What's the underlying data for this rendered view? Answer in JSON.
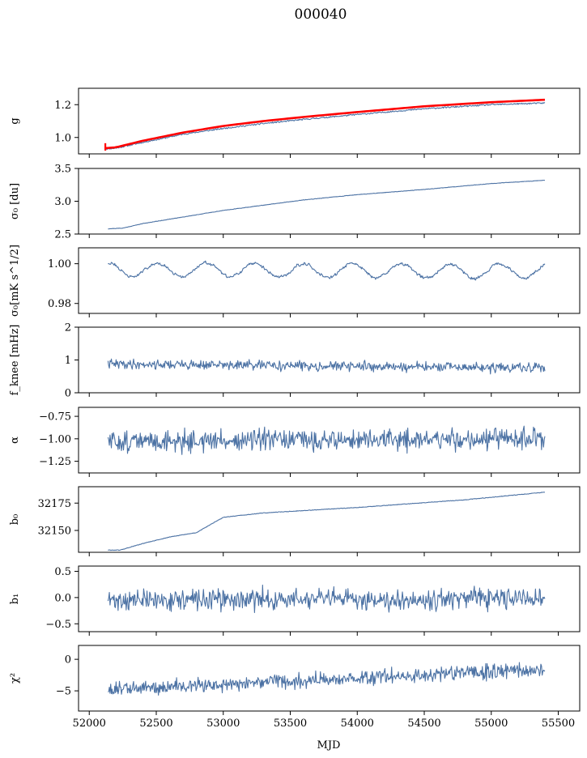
{
  "figure": {
    "title": "000040",
    "xlabel": "MJD",
    "x_ticks": [
      52000,
      52500,
      53000,
      53500,
      54000,
      54500,
      55000,
      55500
    ],
    "x_tick_labels": [
      "52000",
      "52500",
      "53000",
      "53500",
      "54000",
      "54500",
      "55000",
      "55500"
    ],
    "xlim": [
      51920,
      55660
    ]
  },
  "colors": {
    "series": "#4c72a4",
    "fit": "#ff0000",
    "axes": "#000000",
    "background": "#ffffff"
  },
  "chart_data": [
    {
      "type": "line",
      "ylabel": "g",
      "ylim": [
        0.9,
        1.3
      ],
      "yticks": [
        1.0,
        1.2
      ],
      "ytick_labels": [
        "1.0",
        "1.2"
      ],
      "x_range": [
        52120,
        55400
      ],
      "series": [
        {
          "kind": "noisy",
          "color": "#4c72a4",
          "points": [
            [
              52120,
              0.93
            ],
            [
              52200,
              0.935
            ],
            [
              52400,
              0.97
            ],
            [
              52700,
              1.02
            ],
            [
              53000,
              1.055
            ],
            [
              53300,
              1.085
            ],
            [
              53600,
              1.11
            ],
            [
              54000,
              1.14
            ],
            [
              54500,
              1.175
            ],
            [
              55000,
              1.2
            ],
            [
              55400,
              1.21
            ]
          ],
          "noise": 0.004,
          "seed": 11
        },
        {
          "kind": "fit",
          "color": "#ff0000",
          "points": [
            [
              52120,
              0.935
            ],
            [
              52200,
              0.94
            ],
            [
              52400,
              0.98
            ],
            [
              52700,
              1.03
            ],
            [
              53000,
              1.07
            ],
            [
              53300,
              1.1
            ],
            [
              53600,
              1.125
            ],
            [
              54000,
              1.155
            ],
            [
              54500,
              1.19
            ],
            [
              55000,
              1.215
            ],
            [
              55400,
              1.23
            ],
            [
              55480,
              1.232
            ]
          ],
          "noise": 0.0,
          "seed": 3
        }
      ]
    },
    {
      "type": "line",
      "ylabel": "σ₀ [du]",
      "ylim": [
        2.5,
        3.5
      ],
      "yticks": [
        2.5,
        3.0,
        3.5
      ],
      "ytick_labels": [
        "2.5",
        "3.0",
        "3.5"
      ],
      "x_range": [
        52140,
        55400
      ],
      "series": [
        {
          "kind": "noisy",
          "color": "#4c72a4",
          "points": [
            [
              52140,
              2.58
            ],
            [
              52250,
              2.59
            ],
            [
              52400,
              2.66
            ],
            [
              52700,
              2.76
            ],
            [
              53000,
              2.86
            ],
            [
              53300,
              2.94
            ],
            [
              53600,
              3.02
            ],
            [
              54000,
              3.1
            ],
            [
              54500,
              3.18
            ],
            [
              55000,
              3.27
            ],
            [
              55400,
              3.32
            ]
          ],
          "noise": 0.003,
          "seed": 21
        }
      ]
    },
    {
      "type": "line",
      "ylabel": "σ₀[mK s^1/2]",
      "ylim": [
        0.975,
        1.008
      ],
      "yticks": [
        0.98,
        1.0
      ],
      "ytick_labels": [
        "0.98",
        "1.00"
      ],
      "x_range": [
        52140,
        55400
      ],
      "series": [
        {
          "kind": "wave",
          "color": "#4c72a4",
          "base": 0.997,
          "trend": -0.0008,
          "amplitude": 0.0035,
          "period": 365,
          "phase": 0.0,
          "noise": 0.0013,
          "seed": 31
        }
      ]
    },
    {
      "type": "line",
      "ylabel": "f_knee [mHz]",
      "ylim": [
        0,
        2
      ],
      "yticks": [
        0,
        1,
        2
      ],
      "ytick_labels": [
        "0",
        "1",
        "2"
      ],
      "x_range": [
        52140,
        55400
      ],
      "series": [
        {
          "kind": "random",
          "color": "#4c72a4",
          "start": 0.88,
          "end": 0.75,
          "noise": 0.11,
          "seed": 41
        }
      ]
    },
    {
      "type": "line",
      "ylabel": "α",
      "ylim": [
        -1.38,
        -0.65
      ],
      "yticks": [
        -1.25,
        -1.0,
        -0.75
      ],
      "ytick_labels": [
        "−1.25",
        "−1.00",
        "−0.75"
      ],
      "x_range": [
        52140,
        55400
      ],
      "series": [
        {
          "kind": "random",
          "color": "#4c72a4",
          "start": -1.03,
          "end": -1.0,
          "noise": 0.09,
          "seed": 51
        }
      ]
    },
    {
      "type": "line",
      "ylabel": "b₀",
      "ylim": [
        32130,
        32190
      ],
      "yticks": [
        32150,
        32175
      ],
      "ytick_labels": [
        "32150",
        "32175"
      ],
      "x_range": [
        52140,
        55400
      ],
      "series": [
        {
          "kind": "noisy",
          "color": "#4c72a4",
          "points": [
            [
              52140,
              32132
            ],
            [
              52230,
              32132
            ],
            [
              52400,
              32138
            ],
            [
              52600,
              32144
            ],
            [
              52800,
              32148
            ],
            [
              53000,
              32162
            ],
            [
              53300,
              32166
            ],
            [
              54000,
              32171
            ],
            [
              54800,
              32178
            ],
            [
              55400,
              32185
            ]
          ],
          "noise": 0.25,
          "seed": 61
        }
      ]
    },
    {
      "type": "line",
      "ylabel": "b₁",
      "ylim": [
        -0.65,
        0.6
      ],
      "yticks": [
        -0.5,
        0.0,
        0.5
      ],
      "ytick_labels": [
        "−0.5",
        "0.0",
        "0.5"
      ],
      "x_range": [
        52140,
        55400
      ],
      "series": [
        {
          "kind": "random",
          "color": "#4c72a4",
          "start": -0.05,
          "end": -0.02,
          "noise": 0.15,
          "seed": 71
        }
      ]
    },
    {
      "type": "line",
      "ylabel": "χ²",
      "ylim": [
        -8.2,
        2.2
      ],
      "yticks": [
        -5,
        0
      ],
      "ytick_labels": [
        "−5",
        "0"
      ],
      "x_range": [
        52140,
        55400
      ],
      "series": [
        {
          "kind": "random",
          "color": "#4c72a4",
          "start": -4.8,
          "end": -1.6,
          "noise": 0.9,
          "seed": 81
        }
      ]
    }
  ]
}
